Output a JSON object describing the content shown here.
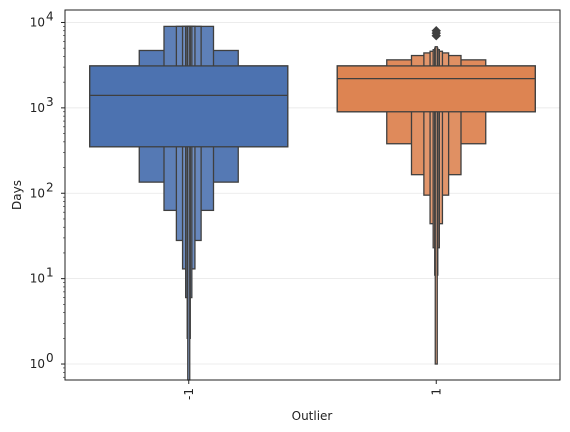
{
  "chart_data": {
    "type": "boxen",
    "xlabel": "Outlier",
    "ylabel": "Days",
    "yscale": "log",
    "ylim": [
      0.65,
      14000
    ],
    "grid": "y",
    "yticks": [
      {
        "value": 1,
        "base": "10",
        "exp": "0"
      },
      {
        "value": 10,
        "base": "10",
        "exp": "1"
      },
      {
        "value": 100,
        "base": "10",
        "exp": "2"
      },
      {
        "value": 1000,
        "base": "10",
        "exp": "3"
      },
      {
        "value": 10000,
        "base": "10",
        "exp": "4"
      }
    ],
    "categories": [
      "-1",
      "1"
    ],
    "series": [
      {
        "category": "-1",
        "color": "#4c72b0",
        "median": 1400,
        "levels": [
          {
            "low": 350,
            "high": 3100
          },
          {
            "low": 135,
            "high": 4700
          },
          {
            "low": 63,
            "high": 9000
          },
          {
            "low": 28,
            "high": 9000
          },
          {
            "low": 13,
            "high": 9000
          },
          {
            "low": 6,
            "high": 9000
          },
          {
            "low": 2,
            "high": 9000
          },
          {
            "low": 0.65,
            "high": 9000
          }
        ],
        "outliers": []
      },
      {
        "category": "1",
        "color": "#dd8452",
        "median": 2200,
        "levels": [
          {
            "low": 900,
            "high": 3100
          },
          {
            "low": 380,
            "high": 3650
          },
          {
            "low": 165,
            "high": 4100
          },
          {
            "low": 95,
            "high": 4400
          },
          {
            "low": 44,
            "high": 4600
          },
          {
            "low": 23,
            "high": 4800
          },
          {
            "low": 11,
            "high": 5000
          },
          {
            "low": 1,
            "high": 5200
          }
        ],
        "outliers": [
          7000,
          7500,
          8000
        ]
      }
    ]
  }
}
